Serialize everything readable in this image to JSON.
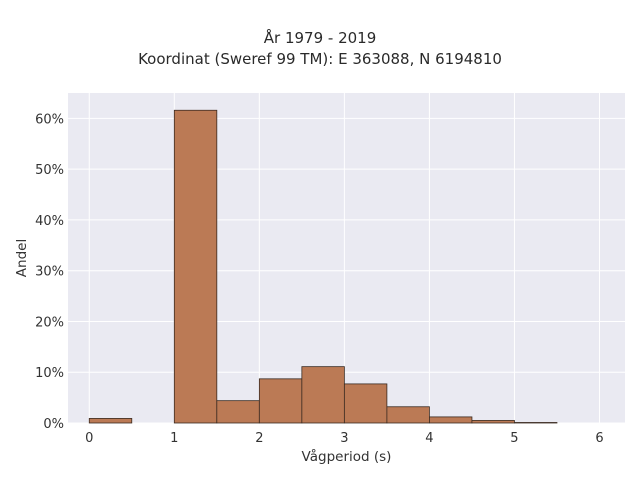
{
  "chart_data": {
    "type": "bar",
    "title_line1": "År 1979 - 2019",
    "title_line2": "Koordinat (Sweref 99 TM): E 363088, N 6194810",
    "xlabel": "Vågperiod (s)",
    "ylabel": "Andel",
    "xlim": [
      -0.25,
      6.3
    ],
    "ylim": [
      0,
      65
    ],
    "x_ticks": [
      0,
      1,
      2,
      3,
      4,
      5,
      6
    ],
    "y_ticks": [
      0,
      10,
      20,
      30,
      40,
      50,
      60
    ],
    "y_tick_suffix": "%",
    "grid": true,
    "bar_color": "#bb7a55",
    "bar_edge_color": "#3a2a20",
    "background_color": "#eaeaf2",
    "bins": [
      {
        "x0": 0.0,
        "x1": 0.5,
        "value": 0.9
      },
      {
        "x0": 0.5,
        "x1": 1.0,
        "value": 0
      },
      {
        "x0": 1.0,
        "x1": 1.5,
        "value": 61.6
      },
      {
        "x0": 1.5,
        "x1": 2.0,
        "value": 4.4
      },
      {
        "x0": 2.0,
        "x1": 2.5,
        "value": 8.7
      },
      {
        "x0": 2.5,
        "x1": 3.0,
        "value": 11.1
      },
      {
        "x0": 3.0,
        "x1": 3.5,
        "value": 7.7
      },
      {
        "x0": 3.5,
        "x1": 4.0,
        "value": 3.2
      },
      {
        "x0": 4.0,
        "x1": 4.5,
        "value": 1.2
      },
      {
        "x0": 4.5,
        "x1": 5.0,
        "value": 0.5
      },
      {
        "x0": 5.0,
        "x1": 5.5,
        "value": 0.1
      }
    ]
  }
}
